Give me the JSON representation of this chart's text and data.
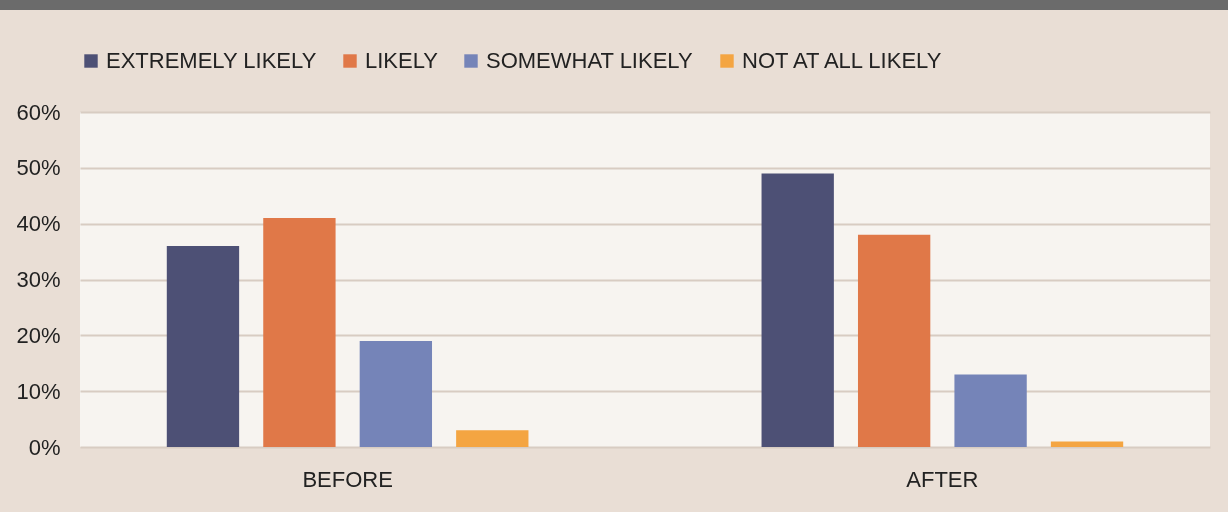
{
  "chart_data": {
    "type": "bar",
    "categories": [
      "BEFORE",
      "AFTER"
    ],
    "series": [
      {
        "name": "EXTREMELY LIKELY",
        "color": "#4d5075",
        "values": [
          36,
          49
        ]
      },
      {
        "name": "LIKELY",
        "color": "#e07848",
        "values": [
          41,
          38
        ]
      },
      {
        "name": "SOMEWHAT LIKELY",
        "color": "#7584b8",
        "values": [
          19,
          13
        ]
      },
      {
        "name": "NOT AT ALL LIKELY",
        "color": "#f4a542",
        "values": [
          3,
          1
        ]
      }
    ],
    "ylim": [
      0,
      60
    ],
    "yticks": [
      {
        "value": 0,
        "label": "0%"
      },
      {
        "value": 10,
        "label": "10%"
      },
      {
        "value": 20,
        "label": "20%"
      },
      {
        "value": 30,
        "label": "30%"
      },
      {
        "value": 40,
        "label": "40%"
      },
      {
        "value": 50,
        "label": "50%"
      },
      {
        "value": 60,
        "label": "60%"
      }
    ],
    "grid": "y",
    "legend": "top"
  }
}
